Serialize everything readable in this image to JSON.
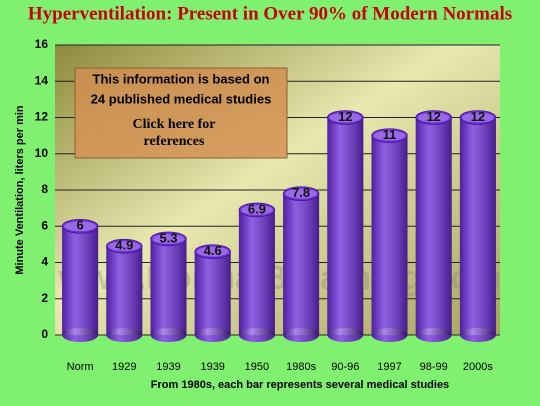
{
  "chart_data": {
    "type": "bar",
    "title": "Hyperventilation: Present in Over 90% of Modern Normals",
    "y_label": "Minute Ventilation, liters per min",
    "x_label": "From 1980s, each bar represents several medical studies",
    "annotation": {
      "lines": [
        "This information is based on",
        "24 published medical studies"
      ],
      "link": [
        "Click here for",
        "references"
      ]
    },
    "watermark": "www.NormalBreathing.com",
    "categories": [
      "Norm",
      "1929",
      "1939",
      "1939",
      "1950",
      "1980s",
      "90-96",
      "1997",
      "98-99",
      "2000s"
    ],
    "values": [
      6,
      4.9,
      5.3,
      4.6,
      6.9,
      7.8,
      12,
      11,
      12,
      12
    ],
    "color": "#6a2ad8",
    "ylim": [
      0,
      16
    ],
    "yticks": [
      0,
      2,
      4,
      6,
      8,
      10,
      12,
      14,
      16
    ],
    "grid": true
  }
}
